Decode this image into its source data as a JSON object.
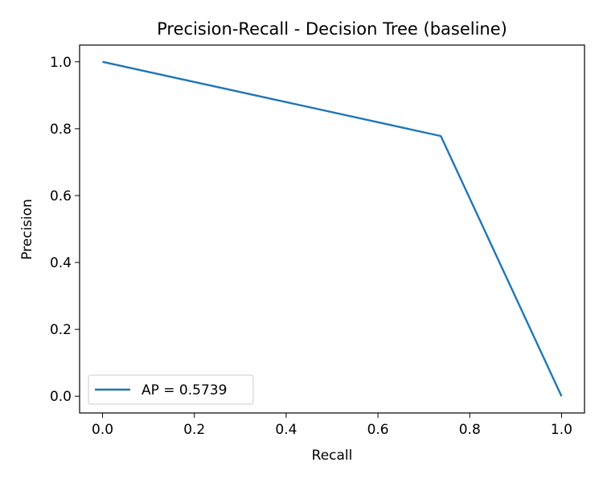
{
  "chart_data": {
    "type": "line",
    "title": "Precision-Recall - Decision Tree (baseline)",
    "xlabel": "Recall",
    "ylabel": "Precision",
    "xlim": [
      -0.05,
      1.05
    ],
    "ylim": [
      -0.05,
      1.05
    ],
    "xticks": [
      0.0,
      0.2,
      0.4,
      0.6,
      0.8,
      1.0
    ],
    "xtick_labels": [
      "0.0",
      "0.2",
      "0.4",
      "0.6",
      "0.8",
      "1.0"
    ],
    "yticks": [
      0.0,
      0.2,
      0.4,
      0.6,
      0.8,
      1.0
    ],
    "ytick_labels": [
      "0.0",
      "0.2",
      "0.4",
      "0.6",
      "0.8",
      "1.0"
    ],
    "grid": false,
    "legend_position": "lower-left",
    "series": [
      {
        "name": "AP = 0.5739",
        "color": "#1f77b4",
        "x": [
          0.0,
          0.737,
          1.0
        ],
        "y": [
          1.0,
          0.778,
          0.0
        ]
      }
    ]
  }
}
